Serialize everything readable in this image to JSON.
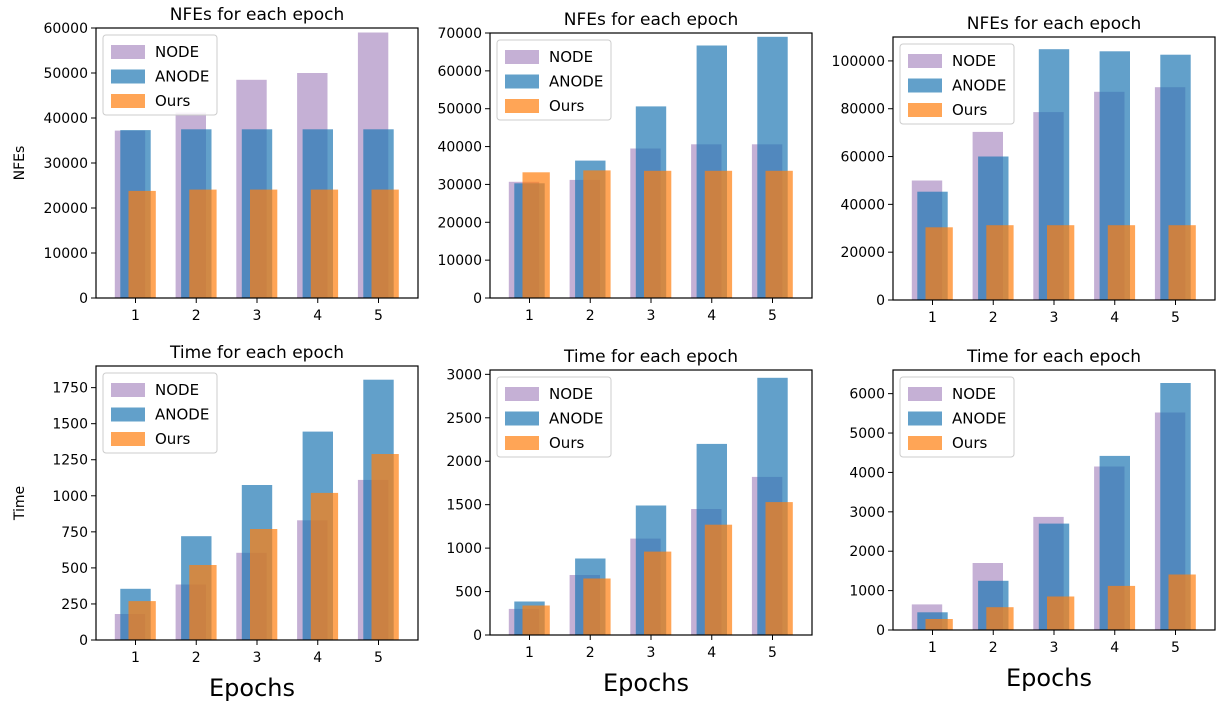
{
  "colors": {
    "NODE": "#c5b0d5",
    "ANODE": "#1f77b4",
    "Ours": "#ff7f0e"
  },
  "xlabel_bottom": "Epochs",
  "chart_data": [
    {
      "type": "bar",
      "title": "NFEs for each epoch",
      "xlabel": "",
      "ylabel": "NFEs",
      "categories": [
        "1",
        "2",
        "3",
        "4",
        "5"
      ],
      "ylim": [
        0,
        60000
      ],
      "yticks": [
        0,
        10000,
        20000,
        30000,
        40000,
        50000,
        60000
      ],
      "ytick_labels": [
        "0",
        "10000",
        "20000",
        "30000",
        "40000",
        "50000",
        "60000"
      ],
      "series": [
        {
          "name": "NODE",
          "values": [
            37200,
            41200,
            48500,
            50000,
            59000
          ]
        },
        {
          "name": "ANODE",
          "values": [
            37300,
            37500,
            37500,
            37500,
            37500
          ]
        },
        {
          "name": "Ours",
          "values": [
            23800,
            24100,
            24100,
            24100,
            24100
          ]
        }
      ],
      "legend": "top-left",
      "grid": false
    },
    {
      "type": "bar",
      "title": "NFEs for each epoch",
      "xlabel": "",
      "ylabel": "",
      "categories": [
        "1",
        "2",
        "3",
        "4",
        "5"
      ],
      "ylim": [
        0,
        70000
      ],
      "yticks": [
        0,
        10000,
        20000,
        30000,
        40000,
        50000,
        60000,
        70000
      ],
      "ytick_labels": [
        "0",
        "10000",
        "20000",
        "30000",
        "40000",
        "50000",
        "60000",
        "70000"
      ],
      "series": [
        {
          "name": "NODE",
          "values": [
            30700,
            31200,
            39500,
            40600,
            40600
          ]
        },
        {
          "name": "ANODE",
          "values": [
            30300,
            36300,
            50600,
            66700,
            69000
          ]
        },
        {
          "name": "Ours",
          "values": [
            33200,
            33700,
            33600,
            33600,
            33600
          ]
        }
      ],
      "legend": "top-left",
      "grid": false
    },
    {
      "type": "bar",
      "title": "NFEs for each epoch",
      "xlabel": "",
      "ylabel": "",
      "categories": [
        "1",
        "2",
        "3",
        "4",
        "5"
      ],
      "ylim": [
        0,
        110000
      ],
      "yticks": [
        0,
        20000,
        40000,
        60000,
        80000,
        100000
      ],
      "ytick_labels": [
        "0",
        "20000",
        "40000",
        "60000",
        "80000",
        "100000"
      ],
      "series": [
        {
          "name": "NODE",
          "values": [
            50000,
            70300,
            78600,
            87100,
            89000
          ]
        },
        {
          "name": "ANODE",
          "values": [
            45300,
            60000,
            104900,
            104000,
            102600
          ]
        },
        {
          "name": "Ours",
          "values": [
            30400,
            31300,
            31300,
            31300,
            31300
          ]
        }
      ],
      "legend": "top-left",
      "grid": false
    },
    {
      "type": "bar",
      "title": "Time for each epoch",
      "xlabel": "Epochs",
      "ylabel": "Time",
      "categories": [
        "1",
        "2",
        "3",
        "4",
        "5"
      ],
      "ylim": [
        0,
        1900
      ],
      "yticks": [
        0,
        250,
        500,
        750,
        1000,
        1250,
        1500,
        1750
      ],
      "ytick_labels": [
        "0",
        "250",
        "500",
        "750",
        "1000",
        "1250",
        "1500",
        "1750"
      ],
      "series": [
        {
          "name": "NODE",
          "values": [
            180,
            385,
            605,
            830,
            1110
          ]
        },
        {
          "name": "ANODE",
          "values": [
            355,
            720,
            1075,
            1445,
            1805
          ]
        },
        {
          "name": "Ours",
          "values": [
            270,
            520,
            770,
            1020,
            1290
          ]
        }
      ],
      "legend": "top-left",
      "grid": false
    },
    {
      "type": "bar",
      "title": "Time for each epoch",
      "xlabel": "Epochs",
      "ylabel": "",
      "categories": [
        "1",
        "2",
        "3",
        "4",
        "5"
      ],
      "ylim": [
        0,
        3050
      ],
      "yticks": [
        0,
        500,
        1000,
        1500,
        2000,
        2500,
        3000
      ],
      "ytick_labels": [
        "0",
        "500",
        "1000",
        "1500",
        "2000",
        "2500",
        "3000"
      ],
      "series": [
        {
          "name": "NODE",
          "values": [
            300,
            690,
            1110,
            1450,
            1820
          ]
        },
        {
          "name": "ANODE",
          "values": [
            385,
            880,
            1490,
            2200,
            2960
          ]
        },
        {
          "name": "Ours",
          "values": [
            340,
            650,
            960,
            1270,
            1530
          ]
        }
      ],
      "legend": "top-left",
      "grid": false
    },
    {
      "type": "bar",
      "title": "Time for each epoch",
      "xlabel": "Epochs",
      "ylabel": "",
      "categories": [
        "1",
        "2",
        "3",
        "4",
        "5"
      ],
      "ylim": [
        0,
        6600
      ],
      "yticks": [
        0,
        1000,
        2000,
        3000,
        4000,
        5000,
        6000
      ],
      "ytick_labels": [
        "0",
        "1000",
        "2000",
        "3000",
        "4000",
        "5000",
        "6000"
      ],
      "series": [
        {
          "name": "NODE",
          "values": [
            650,
            1700,
            2870,
            4150,
            5520
          ]
        },
        {
          "name": "ANODE",
          "values": [
            450,
            1250,
            2700,
            4420,
            6270
          ]
        },
        {
          "name": "Ours",
          "values": [
            280,
            580,
            850,
            1120,
            1410
          ]
        }
      ],
      "legend": "top-left",
      "grid": false
    }
  ]
}
